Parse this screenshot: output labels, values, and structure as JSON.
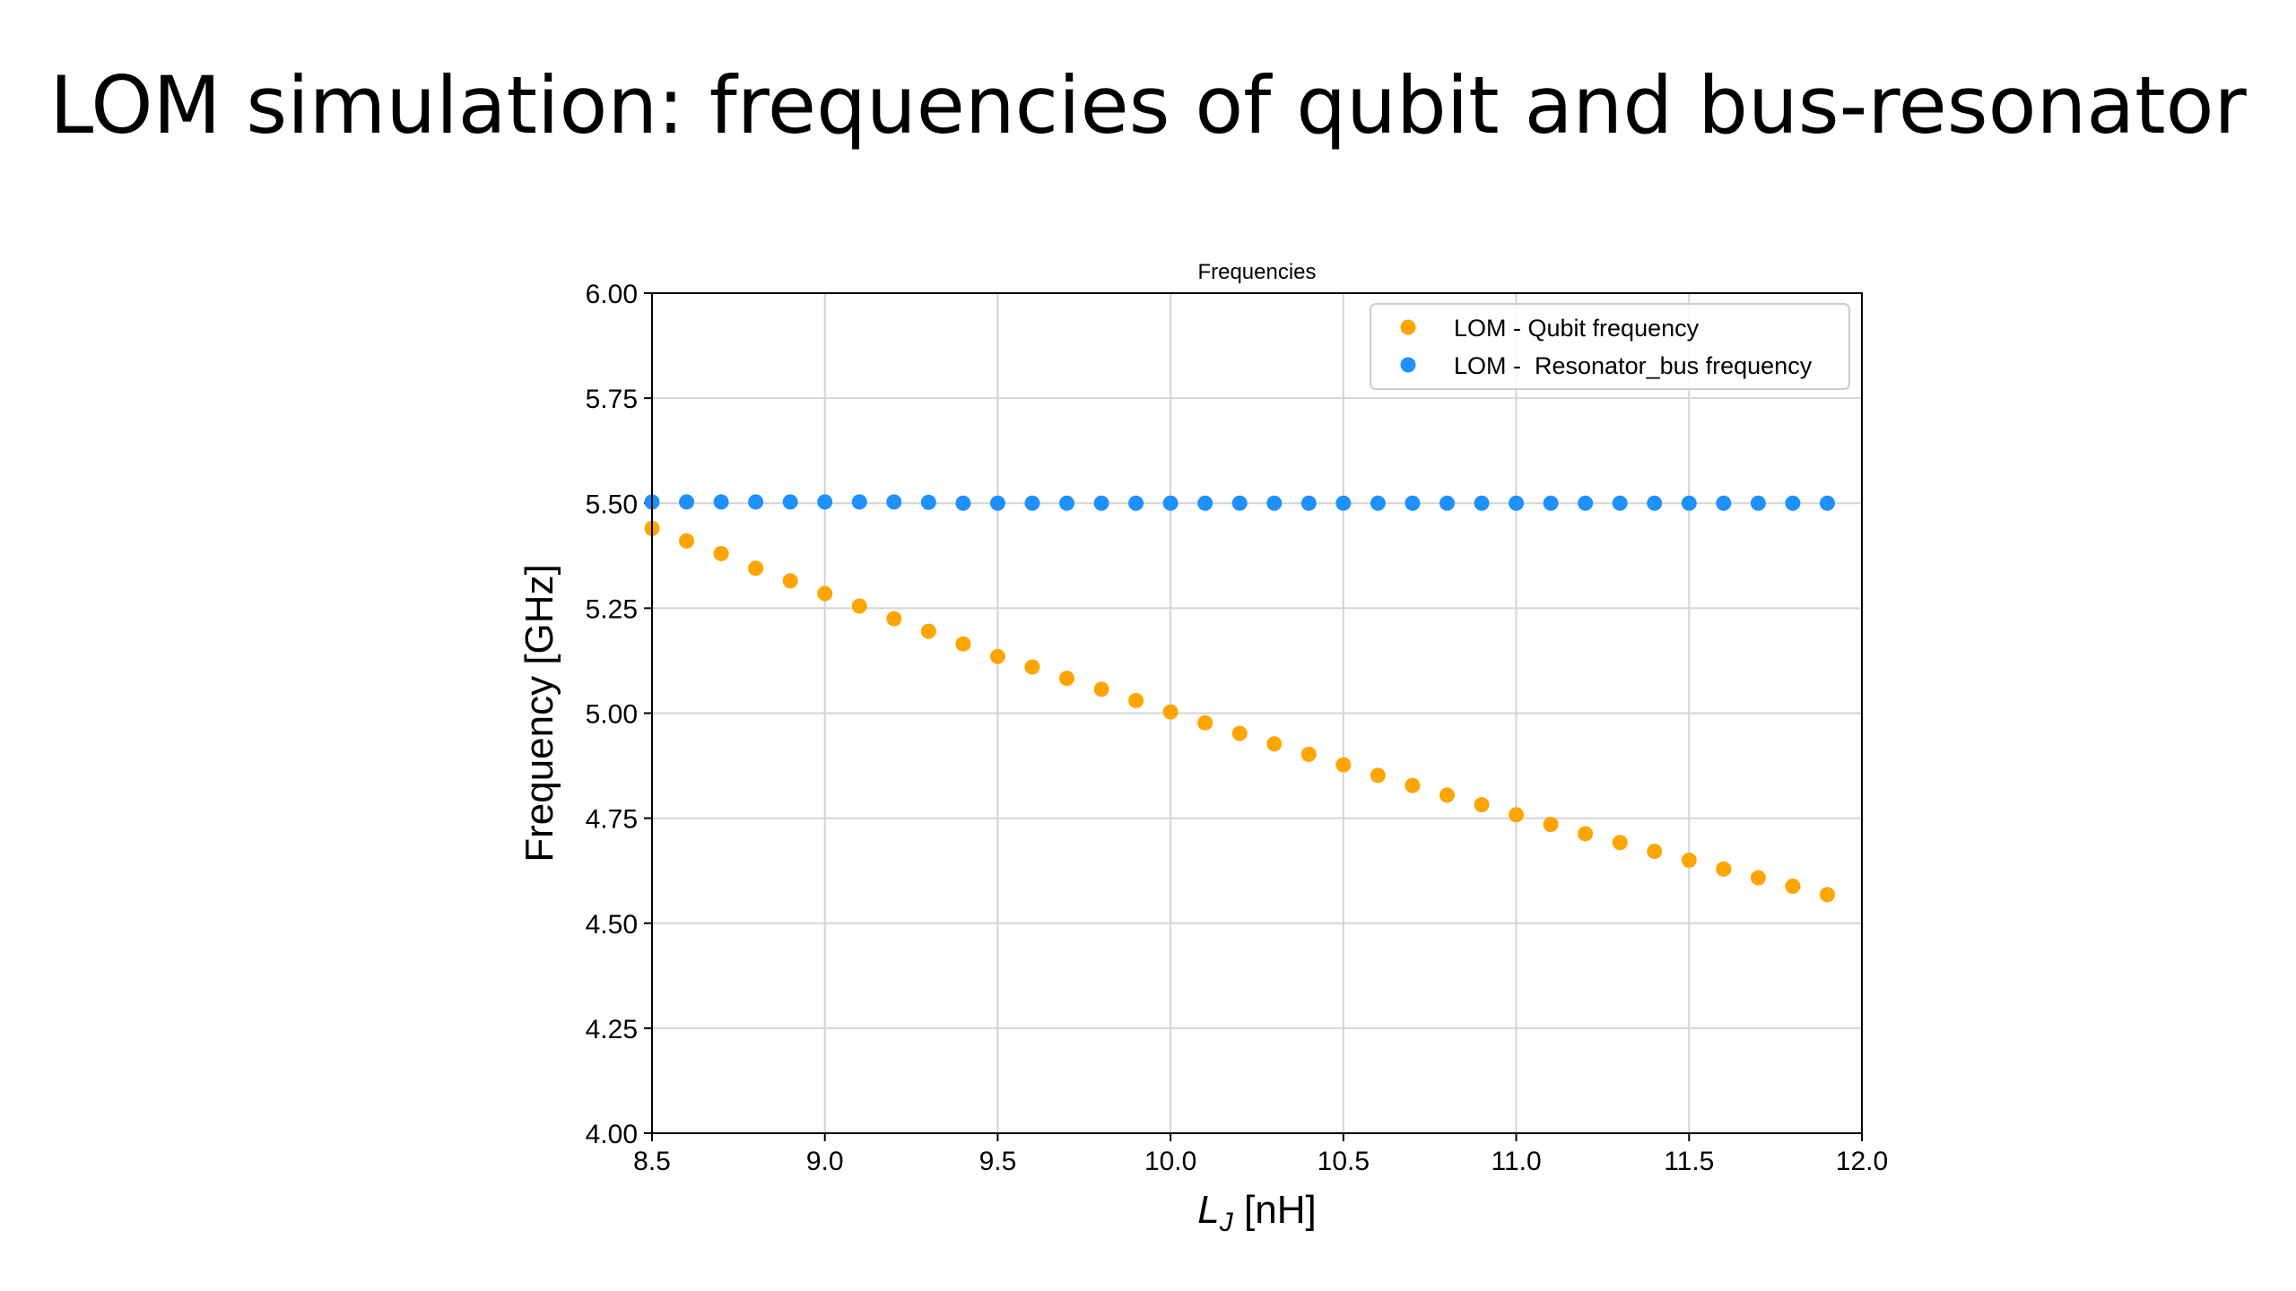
{
  "slide": {
    "title": "LOM simulation: frequencies of qubit and bus-resonator"
  },
  "chart_data": {
    "type": "scatter",
    "title": "Frequencies",
    "xlabel_main": "L",
    "xlabel_sub": "J",
    "xlabel_unit": " [nH]",
    "ylabel": "Frequency [GHz]",
    "xlim": [
      8.5,
      12.0
    ],
    "ylim": [
      4.0,
      6.0
    ],
    "xticks": [
      "8.5",
      "9.0",
      "9.5",
      "10.0",
      "10.5",
      "11.0",
      "11.5",
      "12.0"
    ],
    "yticks": [
      "4.00",
      "4.25",
      "4.50",
      "4.75",
      "5.00",
      "5.25",
      "5.50",
      "5.75",
      "6.00"
    ],
    "grid": true,
    "legend_position": "top-right",
    "series": [
      {
        "name": "LOM - Qubit frequency",
        "color": "#FFA500",
        "x": [
          8.5,
          8.6,
          8.7,
          8.8,
          8.9,
          9.0,
          9.1,
          9.2,
          9.3,
          9.4,
          9.5,
          9.6,
          9.7,
          9.8,
          9.9,
          10.0,
          10.1,
          10.2,
          10.3,
          10.4,
          10.5,
          10.6,
          10.7,
          10.8,
          10.9,
          11.0,
          11.1,
          11.2,
          11.3,
          11.4,
          11.5,
          11.6,
          11.7,
          11.8,
          11.9
        ],
        "y": [
          5.44,
          5.41,
          5.38,
          5.345,
          5.315,
          5.285,
          5.255,
          5.225,
          5.195,
          5.165,
          5.135,
          5.11,
          5.083,
          5.057,
          5.03,
          5.003,
          4.977,
          4.952,
          4.927,
          4.902,
          4.877,
          4.852,
          4.828,
          4.805,
          4.782,
          4.758,
          4.735,
          4.713,
          4.692,
          4.671,
          4.65,
          4.629,
          4.608,
          4.588,
          4.568
        ]
      },
      {
        "name": "LOM -  Resonator_bus frequency",
        "color": "#1E90FF",
        "x": [
          8.5,
          8.6,
          8.7,
          8.8,
          8.9,
          9.0,
          9.1,
          9.2,
          9.3,
          9.4,
          9.5,
          9.6,
          9.7,
          9.8,
          9.9,
          10.0,
          10.1,
          10.2,
          10.3,
          10.4,
          10.5,
          10.6,
          10.7,
          10.8,
          10.9,
          11.0,
          11.1,
          11.2,
          11.3,
          11.4,
          11.5,
          11.6,
          11.7,
          11.8,
          11.9
        ],
        "y": [
          5.503,
          5.503,
          5.503,
          5.503,
          5.503,
          5.503,
          5.503,
          5.503,
          5.502,
          5.5,
          5.5,
          5.5,
          5.5,
          5.5,
          5.5,
          5.5,
          5.5,
          5.5,
          5.5,
          5.5,
          5.5,
          5.5,
          5.5,
          5.5,
          5.5,
          5.5,
          5.5,
          5.5,
          5.5,
          5.5,
          5.5,
          5.5,
          5.5,
          5.5,
          5.5
        ]
      }
    ]
  }
}
